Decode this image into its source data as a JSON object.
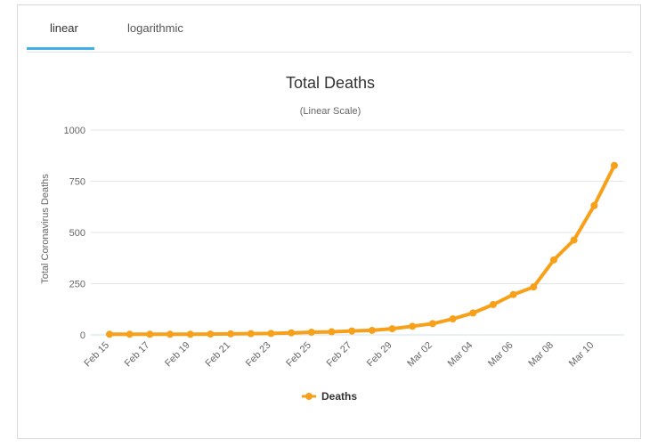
{
  "tabs": [
    {
      "label": "linear",
      "active": true
    },
    {
      "label": "logarithmic",
      "active": false
    }
  ],
  "colors": {
    "series": "#f7a01a",
    "grid": "#e6e6e6",
    "tab_active": "#3db1e6",
    "baseline": "#cfe0ea"
  },
  "chart_data": {
    "type": "line",
    "title": "Total Deaths",
    "subtitle": "(Linear Scale)",
    "ylabel": "Total Coronavirus Deaths",
    "xlabel": "",
    "ylim": [
      0,
      1000
    ],
    "yticks": [
      0,
      250,
      500,
      750,
      1000
    ],
    "grid": true,
    "legend_position": "bottom",
    "x": [
      "Feb 15",
      "Feb 16",
      "Feb 17",
      "Feb 18",
      "Feb 19",
      "Feb 20",
      "Feb 21",
      "Feb 22",
      "Feb 23",
      "Feb 24",
      "Feb 25",
      "Feb 26",
      "Feb 27",
      "Feb 28",
      "Feb 29",
      "Mar 01",
      "Mar 02",
      "Mar 03",
      "Mar 04",
      "Mar 05",
      "Mar 06",
      "Mar 07",
      "Mar 08",
      "Mar 09",
      "Mar 10",
      "Mar 11"
    ],
    "xtick_labels": [
      "Feb 15",
      "Feb 17",
      "Feb 19",
      "Feb 21",
      "Feb 23",
      "Feb 25",
      "Feb 27",
      "Feb 29",
      "Mar 02",
      "Mar 04",
      "Mar 06",
      "Mar 08",
      "Mar 10"
    ],
    "series": [
      {
        "name": "Deaths",
        "color": "#f7a01a",
        "values": [
          3,
          3,
          3,
          3,
          3,
          4,
          5,
          6,
          7,
          10,
          13,
          15,
          19,
          22,
          30,
          42,
          55,
          78,
          107,
          148,
          197,
          234,
          366,
          463,
          631,
          827
        ]
      }
    ]
  }
}
